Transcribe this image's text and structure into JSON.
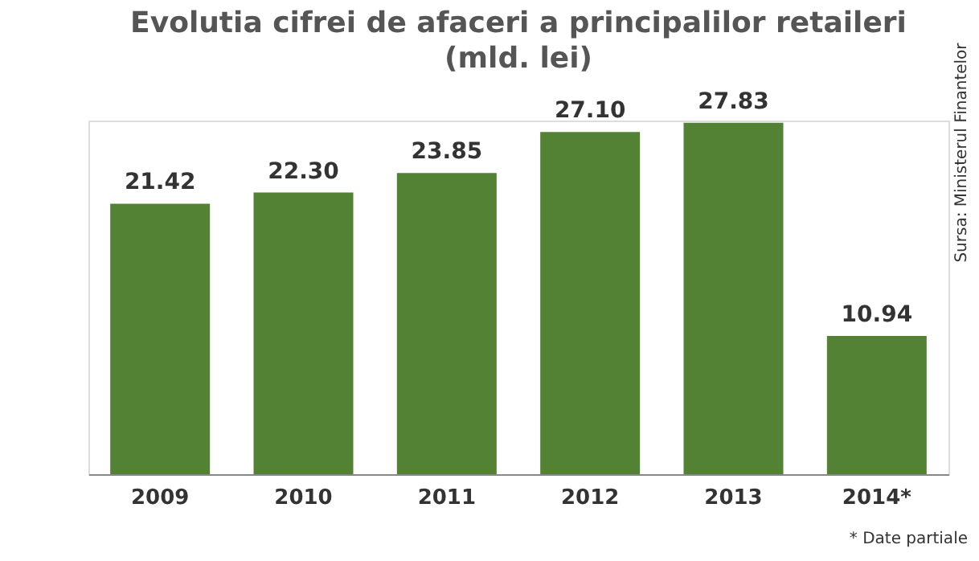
{
  "chart_data": {
    "type": "bar",
    "title": [
      "Evolutia cifrei de afaceri a principalilor retaileri",
      "(mld. lei)"
    ],
    "categories": [
      "2009",
      "2010",
      "2011",
      "2012",
      "2013",
      "2014*"
    ],
    "values": [
      21.42,
      22.3,
      23.85,
      27.1,
      27.83,
      10.94
    ],
    "value_labels": [
      "21.42",
      "22.30",
      "23.85",
      "27.10",
      "27.83",
      "10.94"
    ],
    "color": "#548235",
    "grid": false,
    "annotations": [
      "Sursa: Ministerul Finantelor",
      "* Date partiale"
    ]
  }
}
